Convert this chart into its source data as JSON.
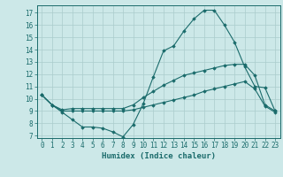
{
  "xlabel": "Humidex (Indice chaleur)",
  "background_color": "#cce8e8",
  "grid_color": "#aacccc",
  "line_color": "#1a6b6b",
  "xlim": [
    -0.5,
    23.5
  ],
  "ylim": [
    6.8,
    17.6
  ],
  "yticks": [
    7,
    8,
    9,
    10,
    11,
    12,
    13,
    14,
    15,
    16,
    17
  ],
  "xticks": [
    0,
    1,
    2,
    3,
    4,
    5,
    6,
    7,
    8,
    9,
    10,
    11,
    12,
    13,
    14,
    15,
    16,
    17,
    18,
    19,
    20,
    21,
    22,
    23
  ],
  "line1_x": [
    0,
    1,
    2,
    3,
    4,
    5,
    6,
    7,
    8,
    9,
    10,
    11,
    12,
    13,
    14,
    15,
    16,
    17,
    18,
    19,
    20,
    21,
    22,
    23
  ],
  "line1_y": [
    10.3,
    9.5,
    8.9,
    8.3,
    7.7,
    7.7,
    7.6,
    7.3,
    6.9,
    7.9,
    9.6,
    11.8,
    13.9,
    14.3,
    15.5,
    16.5,
    17.2,
    17.2,
    16.0,
    14.6,
    12.6,
    11.0,
    10.9,
    9.0
  ],
  "line2_x": [
    0,
    1,
    2,
    3,
    4,
    5,
    6,
    7,
    8,
    9,
    10,
    11,
    12,
    13,
    14,
    15,
    16,
    17,
    18,
    19,
    20,
    21,
    22,
    23
  ],
  "line2_y": [
    10.3,
    9.5,
    9.1,
    9.2,
    9.2,
    9.2,
    9.2,
    9.2,
    9.2,
    9.5,
    10.1,
    10.6,
    11.1,
    11.5,
    11.9,
    12.1,
    12.3,
    12.5,
    12.7,
    12.8,
    12.8,
    11.9,
    9.5,
    9.0
  ],
  "line3_x": [
    0,
    1,
    2,
    3,
    4,
    5,
    6,
    7,
    8,
    9,
    10,
    11,
    12,
    13,
    14,
    15,
    16,
    17,
    18,
    19,
    20,
    21,
    22,
    23
  ],
  "line3_y": [
    10.3,
    9.5,
    9.0,
    9.0,
    9.0,
    9.0,
    9.0,
    9.0,
    9.0,
    9.1,
    9.3,
    9.5,
    9.7,
    9.9,
    10.1,
    10.3,
    10.6,
    10.8,
    11.0,
    11.2,
    11.4,
    10.8,
    9.4,
    8.9
  ]
}
